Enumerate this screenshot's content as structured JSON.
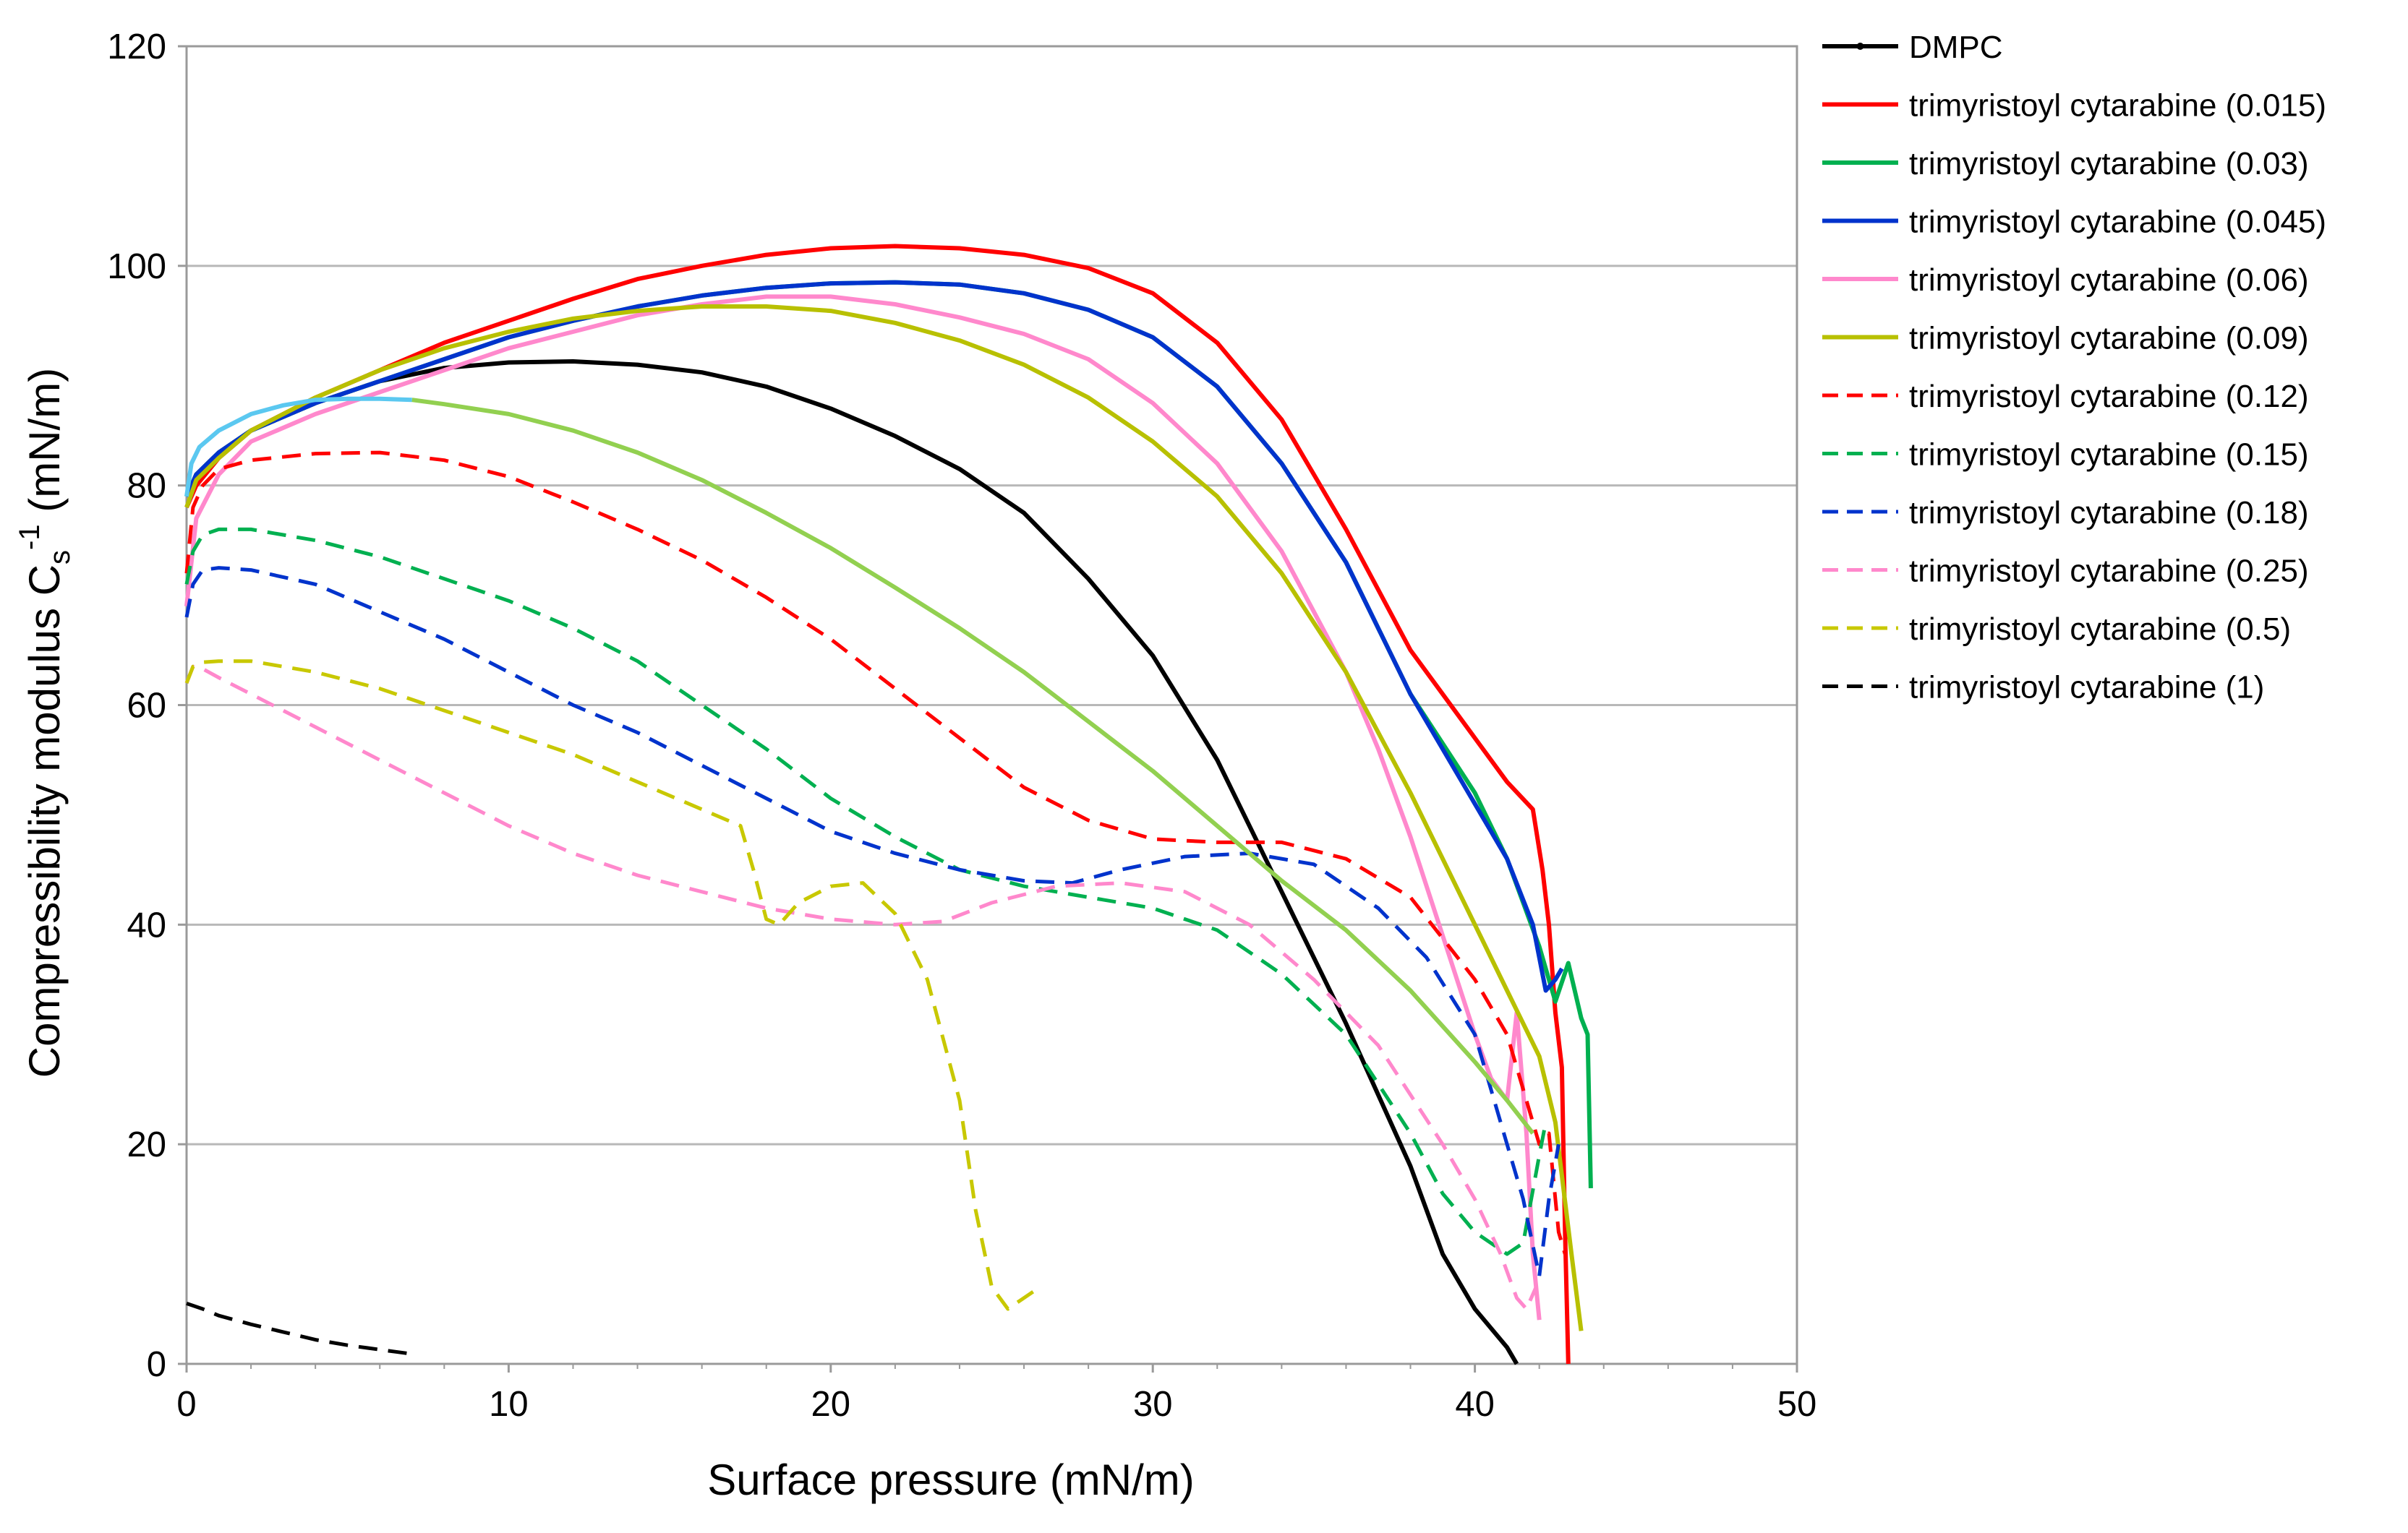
{
  "chart_data": {
    "type": "line",
    "title": "",
    "xlabel": "Surface pressure (mN/m)",
    "ylabel": {
      "main": "Compressibility modulus  C",
      "sub": "s",
      "sup": "-1",
      "unit": " (mN/m)"
    },
    "xlim": [
      0,
      50
    ],
    "ylim": [
      0,
      120
    ],
    "xticks": [
      0,
      10,
      20,
      30,
      40,
      50
    ],
    "yticks": [
      0,
      20,
      40,
      60,
      80,
      100,
      120
    ],
    "grid": "horizontal",
    "legend_position": "right",
    "series": [
      {
        "name": "DMPC",
        "color": "#000000",
        "dash": "solid",
        "marker": "dot",
        "x": [
          0,
          0.3,
          1,
          2,
          4,
          6,
          8,
          10,
          12,
          14,
          16,
          18,
          20,
          22,
          24,
          26,
          28,
          30,
          32,
          34,
          36,
          38,
          39,
          40,
          41,
          41.3
        ],
        "y": [
          79,
          81,
          83,
          85,
          87.5,
          89.5,
          90.7,
          91.2,
          91.3,
          91.0,
          90.3,
          89.0,
          87.0,
          84.5,
          81.5,
          77.5,
          71.5,
          64.5,
          55,
          43,
          31,
          18,
          10,
          5,
          1.5,
          0
        ]
      },
      {
        "name": "trimyristoyl cytarabine (0.015)",
        "color": "#ff0000",
        "dash": "solid",
        "x": [
          0,
          0.3,
          1,
          2,
          4,
          6,
          8,
          10,
          12,
          14,
          16,
          18,
          20,
          22,
          24,
          26,
          28,
          30,
          32,
          34,
          36,
          38,
          40,
          41,
          41.8,
          42.1,
          42.3,
          42.5,
          42.7,
          42.8,
          42.9
        ],
        "y": [
          78,
          80,
          82.5,
          85,
          88,
          90.5,
          93,
          95,
          97,
          98.8,
          100,
          101,
          101.6,
          101.8,
          101.6,
          101,
          99.8,
          97.5,
          93,
          86,
          76,
          65,
          57,
          53,
          50.5,
          45,
          40,
          32,
          27,
          12,
          0
        ]
      },
      {
        "name": "trimyristoyl cytarabine  (0.03)",
        "color": "#00b050",
        "dash": "solid",
        "x": [
          0,
          0.3,
          1,
          2,
          4,
          6,
          8,
          10,
          12,
          14,
          16,
          18,
          20,
          22,
          24,
          26,
          28,
          30,
          32,
          34,
          36,
          38,
          40,
          41,
          42,
          42.5,
          42.9,
          43.1,
          43.3,
          43.5,
          43.6
        ],
        "y": [
          79,
          81,
          83,
          85,
          87.5,
          89.5,
          91.5,
          93.5,
          95,
          96.3,
          97.3,
          98,
          98.4,
          98.5,
          98.3,
          97.5,
          96,
          93.5,
          89,
          82,
          73,
          61,
          52,
          46,
          38,
          33,
          36.5,
          34,
          31.5,
          30,
          16
        ]
      },
      {
        "name": "trimyristoyl cytarabine  (0.045)",
        "color": "#0033cc",
        "dash": "solid",
        "x": [
          0,
          0.3,
          1,
          2,
          4,
          6,
          8,
          10,
          12,
          14,
          16,
          18,
          20,
          22,
          24,
          26,
          28,
          30,
          32,
          34,
          36,
          38,
          40,
          41,
          41.8,
          42.2,
          42.5,
          42.7
        ],
        "y": [
          79,
          81,
          83,
          85,
          87.5,
          89.5,
          91.5,
          93.5,
          95,
          96.3,
          97.3,
          98,
          98.4,
          98.5,
          98.3,
          97.5,
          96,
          93.5,
          89,
          82,
          73,
          61,
          51,
          46,
          40,
          34,
          35,
          36
        ]
      },
      {
        "name": "trimyristoyl cytarabine  (0.06)",
        "color": "#ff88cc",
        "dash": "solid",
        "x": [
          0,
          0.3,
          1,
          2,
          4,
          6,
          8,
          10,
          12,
          14,
          16,
          18,
          20,
          22,
          24,
          26,
          28,
          30,
          32,
          34,
          36,
          37,
          38,
          39,
          40,
          40.5,
          41,
          41.3,
          41.6,
          41.8,
          42.0
        ],
        "y": [
          69,
          77,
          81,
          84,
          86.5,
          88.5,
          90.5,
          92.5,
          94,
          95.5,
          96.5,
          97.2,
          97.2,
          96.5,
          95.3,
          93.8,
          91.5,
          87.5,
          82,
          74,
          63,
          56,
          48,
          39,
          30,
          26,
          24,
          32,
          21,
          10,
          4
        ]
      },
      {
        "name": "trimyristoyl cytarabine  (0.09)",
        "color": "#b8c000",
        "dash": "solid",
        "x": [
          0,
          0.3,
          1,
          2,
          4,
          6,
          8,
          10,
          12,
          14,
          16,
          18,
          20,
          22,
          24,
          26,
          28,
          30,
          32,
          34,
          36,
          38,
          40,
          41,
          42,
          42.5,
          43,
          43.3
        ],
        "y": [
          78,
          80.5,
          82.5,
          85,
          88,
          90.5,
          92.5,
          94,
          95.2,
          95.9,
          96.3,
          96.3,
          95.9,
          94.8,
          93.2,
          91,
          88,
          84,
          79,
          72,
          63,
          52,
          40,
          34,
          28,
          22,
          10,
          3
        ]
      },
      {
        "name": "trimyristoyl cytarabine  (0.12)",
        "color": "#ff0000",
        "dash": "dashed",
        "x": [
          0,
          0.2,
          0.5,
          1,
          2,
          4,
          6,
          8,
          10,
          12,
          14,
          16,
          18,
          20,
          22,
          24,
          26,
          28,
          30,
          32,
          34,
          36,
          38,
          40,
          41,
          41.5,
          42,
          42.3,
          42.6,
          42.8
        ],
        "y": [
          72,
          78,
          80,
          81.5,
          82.3,
          82.9,
          83.0,
          82.3,
          80.8,
          78.5,
          76,
          73.2,
          69.8,
          66,
          61.5,
          57,
          52.5,
          49.5,
          47.8,
          47.5,
          47.5,
          46,
          42.5,
          35,
          30,
          25,
          20,
          21,
          12,
          10
        ]
      },
      {
        "name": "trimyristoyl cytarabine  (0.15)",
        "color": "#00b050",
        "dash": "dashed",
        "x": [
          0,
          0.2,
          0.5,
          1,
          2,
          4,
          6,
          8,
          10,
          12,
          14,
          16,
          18,
          20,
          22,
          24,
          26,
          28,
          30,
          32,
          34,
          36,
          38,
          39,
          40,
          41,
          41.5,
          42,
          42.2
        ],
        "y": [
          71,
          74,
          75.5,
          76,
          76,
          75,
          73.5,
          71.5,
          69.5,
          67,
          64,
          60,
          56,
          51.5,
          48,
          45,
          43.5,
          42.5,
          41.5,
          39.5,
          35.5,
          30,
          21,
          15.5,
          12,
          10,
          11,
          19,
          22
        ]
      },
      {
        "name": "trimyristoyl cytarabine  (0.18)",
        "color": "#0033cc",
        "dash": "dashed",
        "x": [
          0,
          0.2,
          0.5,
          1,
          2,
          4,
          6,
          8,
          10,
          12,
          14,
          16,
          18,
          20,
          22,
          24,
          26,
          27.5,
          29,
          31,
          33,
          35,
          37,
          38.5,
          40,
          41,
          41.5,
          42,
          42.3,
          42.6
        ],
        "y": [
          68,
          71,
          72.3,
          72.5,
          72.3,
          71,
          68.5,
          66,
          63,
          60,
          57.5,
          54.5,
          51.5,
          48.5,
          46.5,
          45,
          44,
          43.8,
          45,
          46.2,
          46.5,
          45.5,
          41.5,
          37,
          30,
          20,
          15,
          8,
          15,
          20
        ]
      },
      {
        "name": "trimyristoyl cytarabine  (0.25)",
        "color": "#ff88cc",
        "dash": "dashed",
        "x": [
          0,
          0.2,
          0.5,
          1,
          2,
          4,
          6,
          8,
          10,
          12,
          14,
          16,
          18,
          20,
          22,
          23.5,
          25,
          27,
          29,
          31,
          33,
          35,
          37,
          39,
          40,
          40.8,
          41.3,
          41.6,
          41.9
        ],
        "y": [
          62,
          63.5,
          63.3,
          62.5,
          61,
          58,
          55,
          52,
          49,
          46.5,
          44.5,
          43,
          41.5,
          40.5,
          40,
          40.3,
          42,
          43.5,
          43.8,
          43,
          40,
          35,
          29,
          20,
          15,
          10,
          6,
          5,
          7
        ]
      },
      {
        "name": "trimyristoyl cytarabine  (0.5)",
        "color": "#c8c800",
        "dash": "dashed",
        "x": [
          0,
          0.2,
          0.5,
          1,
          2,
          4,
          6,
          8,
          10,
          12,
          14,
          16,
          17.2,
          17.6,
          18.0,
          18.4,
          19,
          20,
          21,
          22,
          23,
          24,
          24.5,
          25,
          25.5,
          26,
          26.5
        ],
        "y": [
          62,
          63.5,
          63.9,
          64,
          64,
          63,
          61.5,
          59.5,
          57.5,
          55.5,
          53,
          50.5,
          49,
          45,
          40.5,
          40,
          42,
          43.5,
          43.8,
          41,
          35,
          24,
          14,
          7,
          5,
          6,
          7
        ]
      },
      {
        "name": "trimyristoyl cytarabine  (1)",
        "color": "#000000",
        "dash": "dashed",
        "x": [
          0,
          0.5,
          1,
          2,
          3,
          4,
          5,
          6,
          6.5,
          7
        ],
        "y": [
          5.5,
          5,
          4.4,
          3.6,
          2.9,
          2.2,
          1.7,
          1.3,
          1.1,
          0.9
        ]
      },
      {
        "name": "unlabeled light-blue curve",
        "color": "#5bc8f0",
        "dash": "solid",
        "in_legend": false,
        "x": [
          0,
          0.15,
          0.4,
          1,
          2,
          3,
          4,
          5,
          6,
          7
        ],
        "y": [
          79,
          82,
          83.5,
          85,
          86.5,
          87.3,
          87.8,
          87.9,
          87.9,
          87.8
        ]
      },
      {
        "name": "unlabeled light-green curve",
        "color": "#92d050",
        "dash": "solid",
        "in_legend": false,
        "x": [
          7,
          8,
          10,
          12,
          14,
          16,
          18,
          20,
          22,
          24,
          26,
          28,
          30,
          32,
          34,
          36,
          38,
          40,
          41,
          41.8
        ],
        "y": [
          87.8,
          87.4,
          86.5,
          85,
          83,
          80.5,
          77.5,
          74.3,
          70.7,
          67,
          63,
          58.5,
          54,
          49,
          44,
          39.5,
          34,
          27.5,
          24,
          21
        ]
      }
    ]
  }
}
